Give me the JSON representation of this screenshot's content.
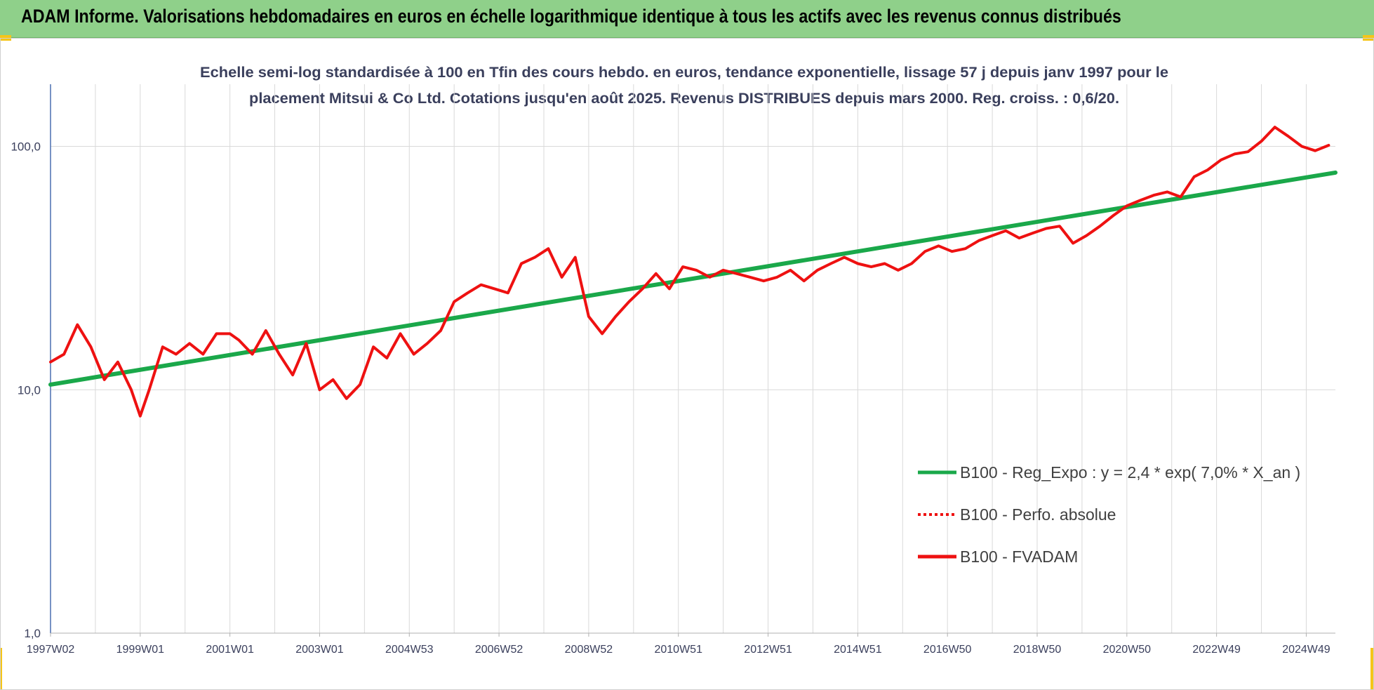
{
  "header": {
    "title": "ADAM Informe. Valorisations hebdomadaires en euros en échelle logarithmique identique à tous les actifs avec les revenus connus distribués"
  },
  "colors": {
    "title_bar": "#8fd08a",
    "corner_accent": "#f5c518",
    "series_red": "#ee1111",
    "series_green": "#1aa84a",
    "grid": "#d9d9d9",
    "axis_text": "#3a3f5c"
  },
  "chart_data": {
    "type": "line",
    "title_line1": "Echelle semi-log standardisée à 100 en Tfin des cours hebdo. en euros, tendance exponentielle, lissage 57 j depuis janv 1997 pour le",
    "title_line2": "placement Mitsui & Co Ltd. Cotations jusqu'en août 2025. Revenus DISTRIBUES depuis mars 2000. Reg. croiss. : 0,6/20.",
    "y_scale": "log",
    "ylim": [
      1,
      180
    ],
    "y_ticks": [
      {
        "value": 1,
        "label": "1,0"
      },
      {
        "value": 10,
        "label": "10,0"
      },
      {
        "value": 100,
        "label": "100,0"
      }
    ],
    "xlim": [
      1997.0,
      2025.65
    ],
    "x_ticks": [
      {
        "x": 1997.0,
        "label": "1997W02"
      },
      {
        "x": 1999.0,
        "label": "1999W01"
      },
      {
        "x": 2001.0,
        "label": "2001W01"
      },
      {
        "x": 2003.0,
        "label": "2003W01"
      },
      {
        "x": 2005.0,
        "label": "2004W53"
      },
      {
        "x": 2007.0,
        "label": "2006W52"
      },
      {
        "x": 2009.0,
        "label": "2008W52"
      },
      {
        "x": 2011.0,
        "label": "2010W51"
      },
      {
        "x": 2013.0,
        "label": "2012W51"
      },
      {
        "x": 2015.0,
        "label": "2014W51"
      },
      {
        "x": 2017.0,
        "label": "2016W50"
      },
      {
        "x": 2019.0,
        "label": "2018W50"
      },
      {
        "x": 2021.0,
        "label": "2020W50"
      },
      {
        "x": 2023.0,
        "label": "2022W49"
      },
      {
        "x": 2025.0,
        "label": "2024W49"
      }
    ],
    "grid": true,
    "legend_position": "right-middle",
    "series": [
      {
        "name": "B100 - Reg_Expo : y = 2,4 * exp( 7,0% *  X_an )",
        "style": "solid",
        "color": "#1aa84a",
        "x": [
          1997.0,
          2025.65
        ],
        "y": [
          10.5,
          78
        ]
      },
      {
        "name": "B100 - Perfo. absolue",
        "style": "dotted",
        "color": "#ee1111",
        "x": [],
        "y": []
      },
      {
        "name": "B100 - FVADAM",
        "style": "solid",
        "color": "#ee1111",
        "x": [
          1997.0,
          1997.3,
          1997.6,
          1997.9,
          1998.2,
          1998.5,
          1998.8,
          1999.0,
          1999.2,
          1999.5,
          1999.8,
          2000.1,
          2000.4,
          2000.7,
          2001.0,
          2001.2,
          2001.5,
          2001.8,
          2002.1,
          2002.4,
          2002.7,
          2003.0,
          2003.3,
          2003.6,
          2003.9,
          2004.2,
          2004.5,
          2004.8,
          2005.1,
          2005.4,
          2005.7,
          2006.0,
          2006.3,
          2006.6,
          2006.9,
          2007.2,
          2007.5,
          2007.8,
          2008.1,
          2008.4,
          2008.7,
          2009.0,
          2009.3,
          2009.6,
          2009.9,
          2010.2,
          2010.5,
          2010.8,
          2011.1,
          2011.4,
          2011.7,
          2012.0,
          2012.3,
          2012.6,
          2012.9,
          2013.2,
          2013.5,
          2013.8,
          2014.1,
          2014.4,
          2014.7,
          2015.0,
          2015.3,
          2015.6,
          2015.9,
          2016.2,
          2016.5,
          2016.8,
          2017.1,
          2017.4,
          2017.7,
          2018.0,
          2018.3,
          2018.6,
          2018.9,
          2019.2,
          2019.5,
          2019.8,
          2020.1,
          2020.4,
          2020.7,
          2021.0,
          2021.3,
          2021.6,
          2021.9,
          2022.2,
          2022.5,
          2022.8,
          2023.1,
          2023.4,
          2023.7,
          2024.0,
          2024.3,
          2024.6,
          2024.9,
          2025.2,
          2025.5
        ],
        "y": [
          13,
          14,
          18.5,
          15,
          11,
          13,
          10,
          7.8,
          10,
          15,
          14,
          15.5,
          14,
          17,
          17,
          16,
          14,
          17.5,
          14,
          11.5,
          15.5,
          10,
          11,
          9.2,
          10.5,
          15,
          13.5,
          17,
          14,
          15.5,
          17.5,
          23,
          25,
          27,
          26,
          25,
          33,
          35,
          38,
          29,
          35,
          20,
          17,
          20,
          23,
          26,
          30,
          26,
          32,
          31,
          29,
          31,
          30,
          29,
          28,
          29,
          31,
          28,
          31,
          33,
          35,
          33,
          32,
          33,
          31,
          33,
          37,
          39,
          37,
          38,
          41,
          43,
          45,
          42,
          44,
          46,
          47,
          40,
          43,
          47,
          52,
          57,
          60,
          63,
          65,
          62,
          75,
          80,
          88,
          93,
          95,
          105,
          120,
          110,
          100,
          96,
          101
        ]
      }
    ]
  }
}
